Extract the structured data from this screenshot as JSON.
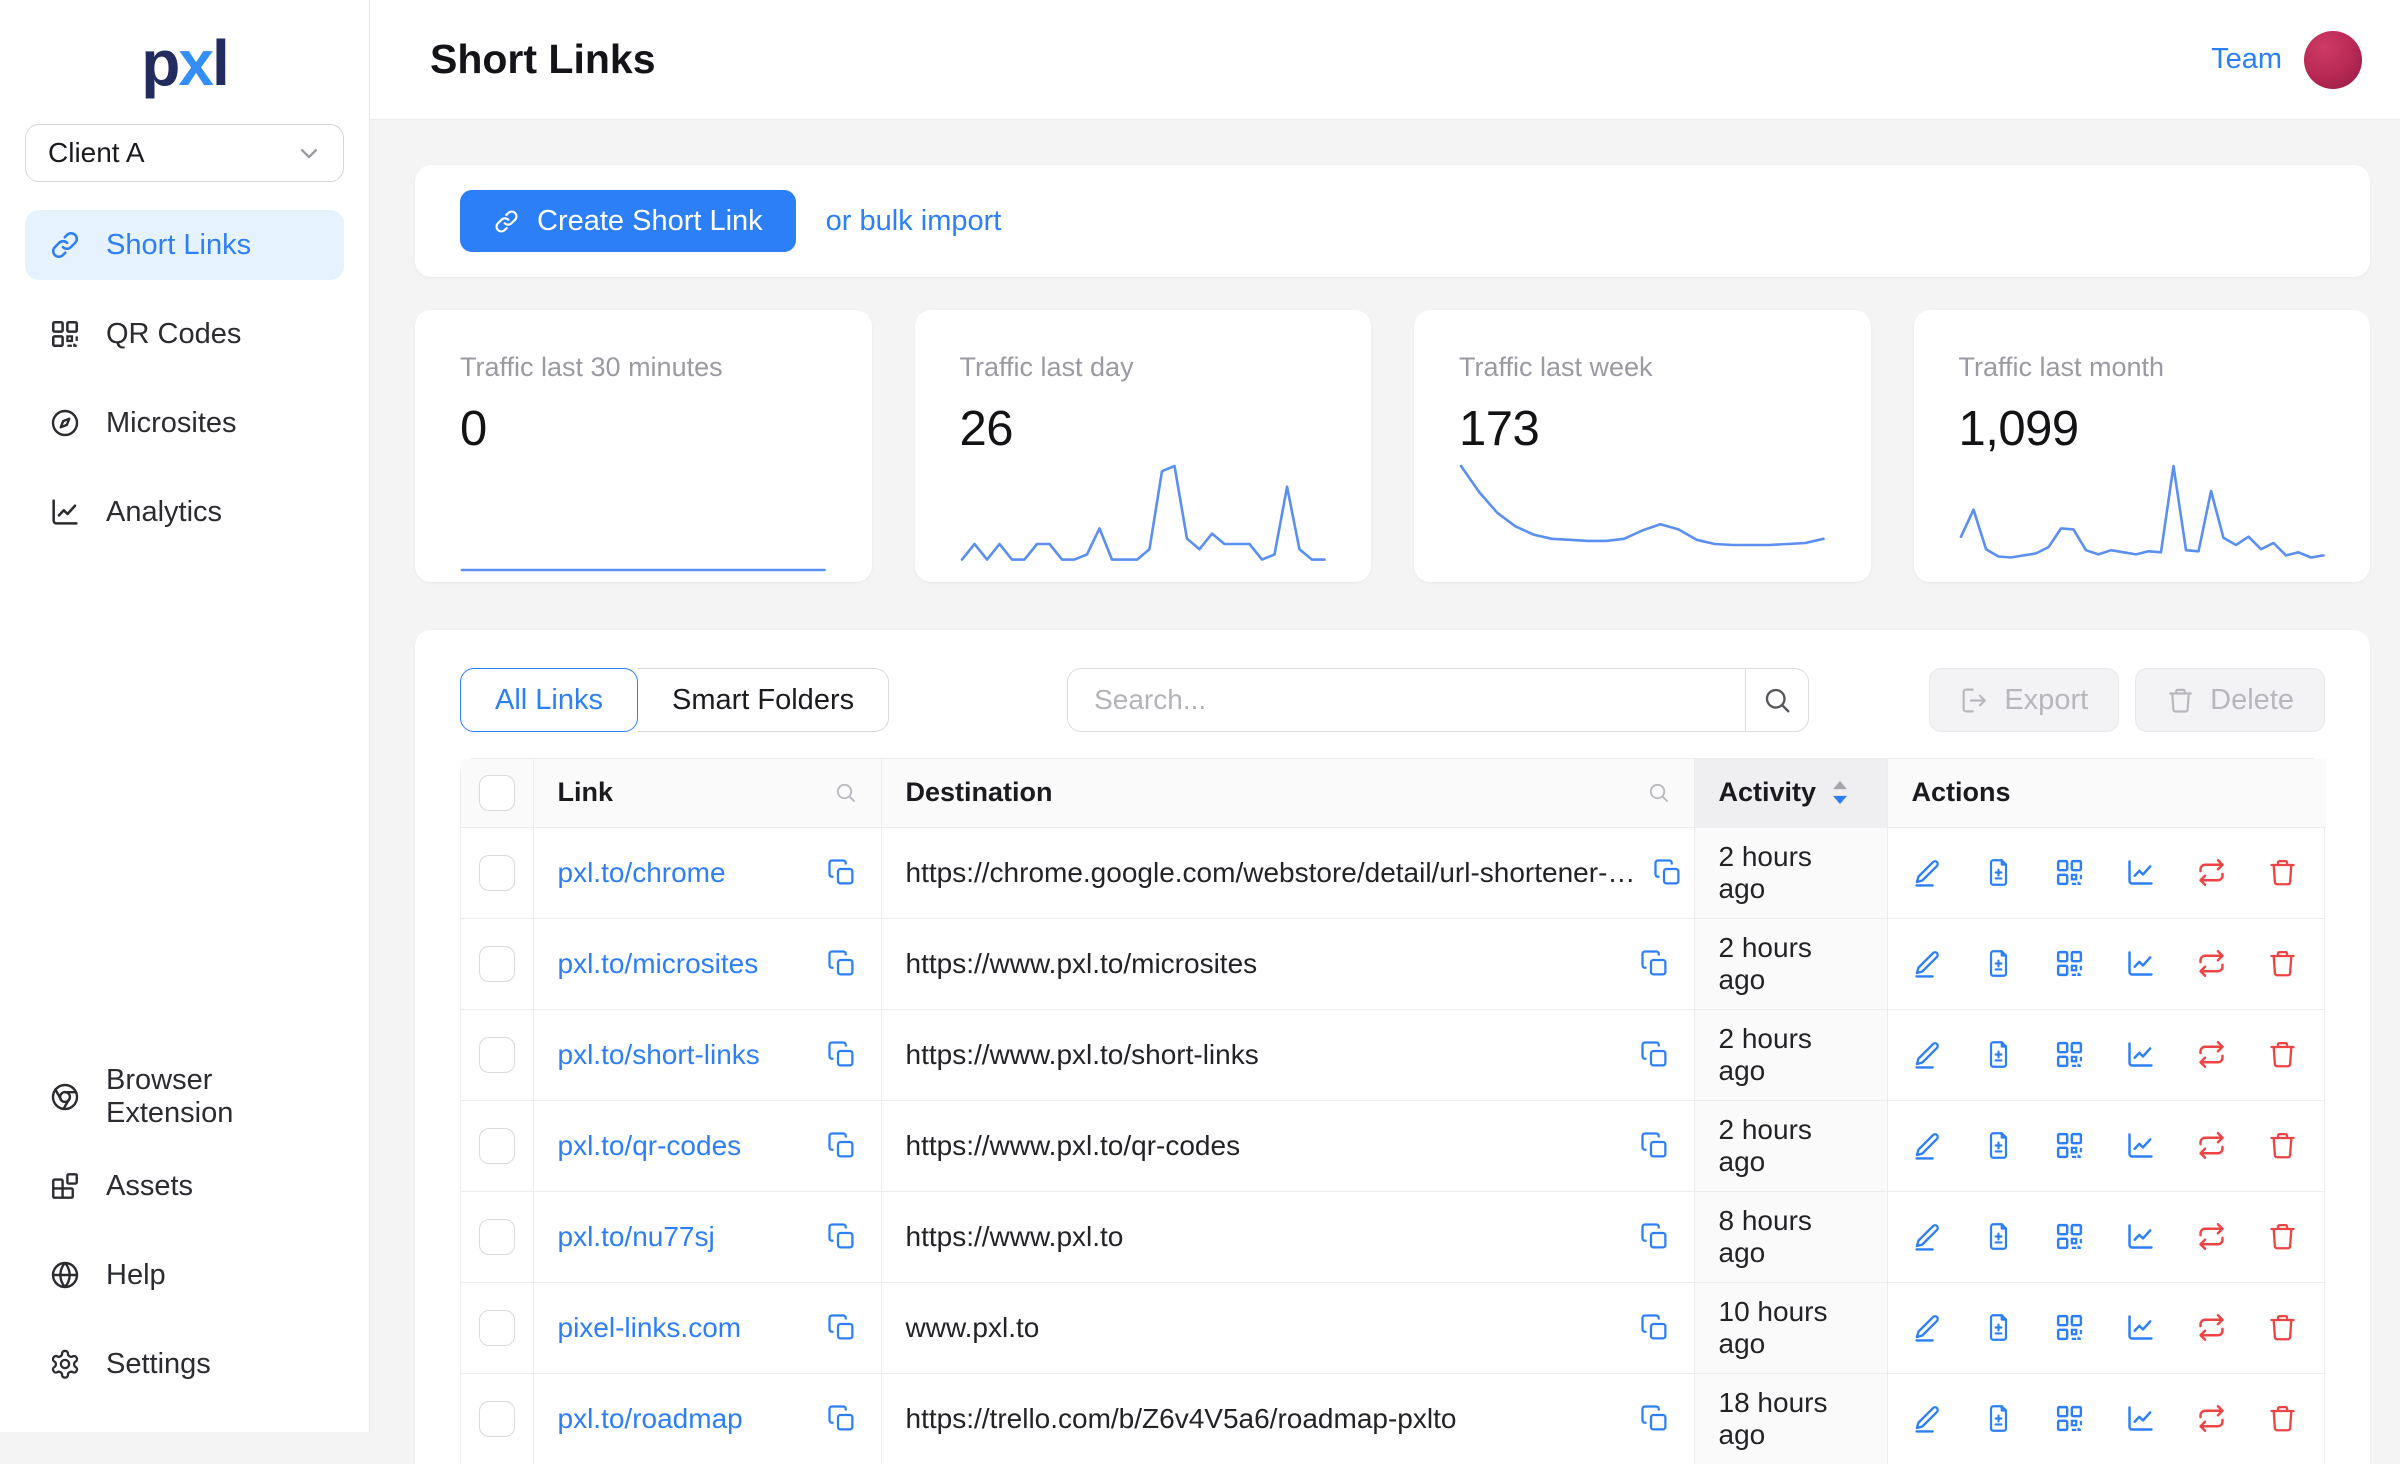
{
  "app": {
    "colors": {
      "accent": "#2d7ff8",
      "danger": "#ef4444",
      "sparkline": "#5b8ff0",
      "active_nav_bg": "#e6f2fd",
      "avatar": "#b62853"
    },
    "logo": {
      "p": "p",
      "x": "x",
      "l": "l"
    }
  },
  "sidebar": {
    "client_selector": {
      "value": "Client A"
    },
    "nav": [
      {
        "label": "Short Links",
        "icon": "link-icon",
        "active": true
      },
      {
        "label": "QR Codes",
        "icon": "qr-code-icon",
        "active": false
      },
      {
        "label": "Microsites",
        "icon": "compass-icon",
        "active": false
      },
      {
        "label": "Analytics",
        "icon": "analytics-icon",
        "active": false
      }
    ],
    "footer_nav": [
      {
        "label": "Browser Extension",
        "icon": "chrome-icon",
        "active": false
      },
      {
        "label": "Assets",
        "icon": "assets-icon",
        "active": false
      },
      {
        "label": "Help",
        "icon": "globe-icon",
        "active": false
      },
      {
        "label": "Settings",
        "icon": "gear-icon",
        "active": false
      }
    ]
  },
  "header": {
    "title": "Short Links",
    "team_label": "Team"
  },
  "create_bar": {
    "create_button": "Create Short Link",
    "bulk_import_link": "or bulk import"
  },
  "stats": [
    {
      "label": "Traffic last 30 minutes",
      "value": "0",
      "sparkline": [
        0,
        0,
        0,
        0,
        0,
        0,
        0,
        0
      ]
    },
    {
      "label": "Traffic last day",
      "value": "26",
      "sparkline": [
        1,
        2.5,
        1,
        2.5,
        1,
        1,
        2.5,
        2.5,
        1,
        1,
        1.5,
        4,
        1,
        1,
        1,
        2,
        9.5,
        10,
        3,
        2,
        3.5,
        2.5,
        2.5,
        2.5,
        1,
        1.5,
        8,
        2,
        1,
        1
      ]
    },
    {
      "label": "Traffic last week",
      "value": "173",
      "sparkline": [
        10,
        7.5,
        5.5,
        4.2,
        3.4,
        3,
        2.9,
        2.8,
        2.8,
        3,
        3.8,
        4.4,
        3.9,
        2.9,
        2.5,
        2.4,
        2.4,
        2.4,
        2.5,
        2.6,
        3
      ]
    },
    {
      "label": "Traffic last month",
      "value": "1,099",
      "sparkline": [
        3.2,
        5.8,
        2,
        1.3,
        1.2,
        1.4,
        1.6,
        2.2,
        4,
        3.9,
        1.9,
        1.5,
        1.9,
        1.7,
        1.5,
        1.8,
        1.7,
        10,
        1.9,
        1.8,
        7.6,
        3.1,
        2.4,
        3.2,
        2,
        2.6,
        1.4,
        1.7,
        1.2,
        1.4
      ]
    }
  ],
  "toolbar": {
    "tabs": [
      {
        "label": "All Links",
        "active": true
      },
      {
        "label": "Smart Folders",
        "active": false
      }
    ],
    "search_placeholder": "Search...",
    "export_button": "Export",
    "delete_button": "Delete"
  },
  "table": {
    "columns": {
      "link": "Link",
      "destination": "Destination",
      "activity": "Activity",
      "actions": "Actions"
    },
    "sort": {
      "column": "Activity",
      "direction": "desc"
    },
    "row_actions": [
      {
        "icon": "edit-icon",
        "danger": false
      },
      {
        "icon": "duplicate-icon",
        "danger": false
      },
      {
        "icon": "qr-code-icon",
        "danger": false
      },
      {
        "icon": "analytics-icon",
        "danger": false
      },
      {
        "icon": "redirect-icon",
        "danger": true
      },
      {
        "icon": "delete-icon",
        "danger": true
      }
    ],
    "rows": [
      {
        "link": "pxl.to/chrome",
        "destination": "https://chrome.google.com/webstore/detail/url-shortener-…",
        "activity": "2 hours ago"
      },
      {
        "link": "pxl.to/microsites",
        "destination": "https://www.pxl.to/microsites",
        "activity": "2 hours ago"
      },
      {
        "link": "pxl.to/short-links",
        "destination": "https://www.pxl.to/short-links",
        "activity": "2 hours ago"
      },
      {
        "link": "pxl.to/qr-codes",
        "destination": "https://www.pxl.to/qr-codes",
        "activity": "2 hours ago"
      },
      {
        "link": "pxl.to/nu77sj",
        "destination": "https://www.pxl.to",
        "activity": "8 hours ago"
      },
      {
        "link": "pixel-links.com",
        "destination": "www.pxl.to",
        "activity": "10 hours ago"
      },
      {
        "link": "pxl.to/roadmap",
        "destination": "https://trello.com/b/Z6v4V5a6/roadmap-pxlto",
        "activity": "18 hours ago"
      }
    ]
  }
}
